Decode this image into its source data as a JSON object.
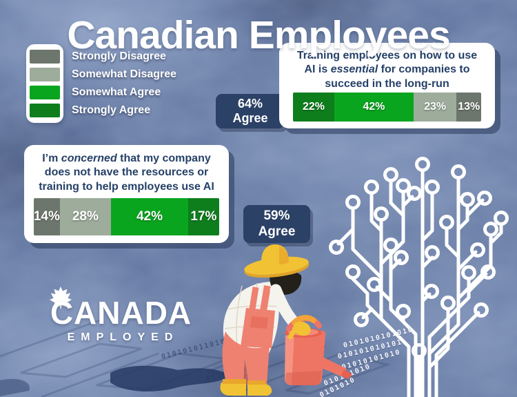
{
  "title": "Canadian Employees",
  "palette": {
    "background_blue": "#6377a1",
    "panel_white": "#ffffff",
    "navy_badge": "#2b4166",
    "question_text_navy": "#254067",
    "strongly_disagree_gray": "#6d766d",
    "somewhat_disagree_gray": "#9dac9b",
    "somewhat_agree_green": "#0aa51f",
    "strongly_agree_green": "#0e7e1d",
    "farmer_coral": "#ee7e6c",
    "farmer_yellow": "#f1c233"
  },
  "legend": {
    "items": [
      {
        "label": "Strongly Disagree",
        "color": "#6d766d"
      },
      {
        "label": "Somewhat Disagree",
        "color": "#9dac9b"
      },
      {
        "label": "Somewhat Agree",
        "color": "#0aa51f"
      },
      {
        "label": "Strongly Agree",
        "color": "#0e7e1d"
      }
    ]
  },
  "chart_data": [
    {
      "type": "bar",
      "stacked": true,
      "unit": "%",
      "title": "Training employees on how to use AI is essential for companies to succeed in the long-run",
      "q_pre": "Training employees on how to use AI is ",
      "q_em": "essential",
      "q_post": " for companies to succeed in the long-run",
      "agree_pct": "64%",
      "agree_word": "Agree",
      "categories": [
        "Strongly Agree",
        "Somewhat Agree",
        "Somewhat Disagree",
        "Strongly Disagree"
      ],
      "values": [
        22,
        42,
        23,
        13
      ],
      "legend_position": "top-left",
      "grid": false
    },
    {
      "type": "bar",
      "stacked": true,
      "unit": "%",
      "title": "I’m concerned that my company does not have the resources or training to help employees use AI",
      "q_pre": "I’m ",
      "q_em": "concerned",
      "q_post": " that my company does not have the resources or training to help employees use AI",
      "agree_pct": "59%",
      "agree_word": "Agree",
      "categories": [
        "Strongly Disagree",
        "Somewhat Disagree",
        "Somewhat Agree",
        "Strongly Agree"
      ],
      "values": [
        14,
        28,
        42,
        17
      ],
      "legend_position": "top-left",
      "grid": false
    }
  ],
  "logo": {
    "name": "CANADA",
    "tagline": "EMPLOYED",
    "icon": "maple-leaf-icon"
  },
  "illustration": {
    "farmer": "farmer watering a digital circuit tree",
    "binary_streams": [
      "0101010101010",
      "010101010101",
      "0101010101010",
      "010101010",
      "0101010"
    ],
    "ground_binary": [
      "010101011010",
      "0110101010"
    ]
  }
}
